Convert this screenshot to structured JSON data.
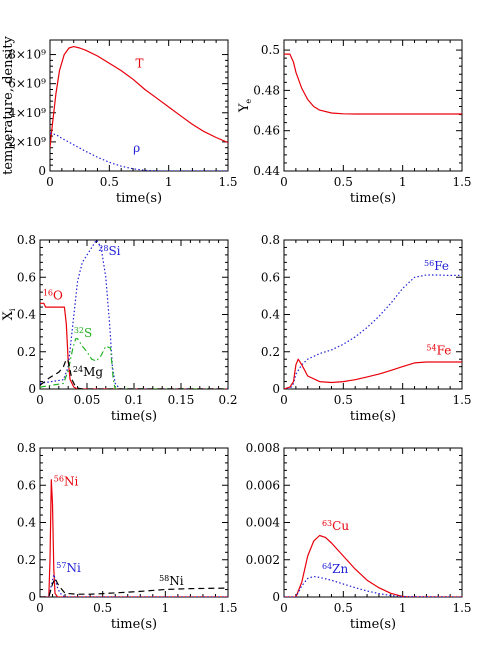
{
  "chart_data": [
    {
      "type": "line",
      "xlabel": "time(s)",
      "ylabel": "temperature, density",
      "xlim": [
        0,
        1.5
      ],
      "ylim": [
        0,
        9000000000.0
      ],
      "x_ticks": [
        0,
        0.5,
        1,
        1.5
      ],
      "x_tick_labels": [
        "0",
        "0.5",
        "1",
        "1.5"
      ],
      "y_ticks": [
        0,
        2000000000.0,
        4000000000.0,
        6000000000.0,
        8000000000.0
      ],
      "y_tick_labels": [
        "0",
        "2×10⁹",
        "4×10⁹",
        "6×10⁹",
        "8×10⁹"
      ],
      "series": [
        {
          "name": "T",
          "color": "#e8000b",
          "style": "solid",
          "x": [
            0,
            0.02,
            0.05,
            0.08,
            0.12,
            0.16,
            0.2,
            0.25,
            0.3,
            0.4,
            0.5,
            0.6,
            0.7,
            0.8,
            0.9,
            1.0,
            1.1,
            1.2,
            1.3,
            1.4,
            1.5
          ],
          "y": [
            1600000000.0,
            3200000000.0,
            5300000000.0,
            6900000000.0,
            8000000000.0,
            8450000000.0,
            8550000000.0,
            8450000000.0,
            8300000000.0,
            7900000000.0,
            7400000000.0,
            6900000000.0,
            6300000000.0,
            5600000000.0,
            5000000000.0,
            4400000000.0,
            3800000000.0,
            3200000000.0,
            2700000000.0,
            2300000000.0,
            1950000000.0
          ]
        },
        {
          "name": "ρ",
          "color": "#1f1fd6",
          "style": "dotted",
          "x": [
            0,
            0.05,
            0.1,
            0.2,
            0.3,
            0.4,
            0.5,
            0.6,
            0.7,
            0.8,
            0.9,
            1.0,
            1.2,
            1.5
          ],
          "y": [
            2600000000.0,
            2500000000.0,
            2250000000.0,
            1800000000.0,
            1350000000.0,
            950000000.0,
            600000000.0,
            330000000.0,
            150000000.0,
            50000000.0,
            10000000.0,
            0,
            0,
            0
          ]
        }
      ],
      "annotations": [
        {
          "text": "T",
          "x": 0.72,
          "y": 7100000000.0,
          "color": "#e8000b"
        },
        {
          "text": "ρ",
          "x": 0.7,
          "y": 1300000000.0,
          "color": "#1f1fd6"
        }
      ]
    },
    {
      "type": "line",
      "xlabel": "time(s)",
      "ylabel": "Y_e",
      "xlim": [
        0,
        1.5
      ],
      "ylim": [
        0.44,
        0.505
      ],
      "x_ticks": [
        0,
        0.5,
        1,
        1.5
      ],
      "x_tick_labels": [
        "0",
        "0.5",
        "1",
        "1.5"
      ],
      "y_ticks": [
        0.44,
        0.46,
        0.48,
        0.5
      ],
      "y_tick_labels": [
        "0.44",
        "0.46",
        "0.48",
        "0.5"
      ],
      "series": [
        {
          "name": "",
          "color": "#e8000b",
          "style": "solid",
          "x": [
            0,
            0.05,
            0.08,
            0.1,
            0.15,
            0.2,
            0.25,
            0.3,
            0.4,
            0.5,
            0.6,
            1.0,
            1.5
          ],
          "y": [
            0.498,
            0.498,
            0.494,
            0.489,
            0.481,
            0.4755,
            0.472,
            0.4702,
            0.4688,
            0.4684,
            0.4683,
            0.4683,
            0.4683
          ]
        }
      ]
    },
    {
      "type": "line",
      "xlabel": "time(s)",
      "ylabel": "Xi",
      "xlim": [
        0,
        0.2
      ],
      "ylim": [
        0,
        0.8
      ],
      "x_ticks": [
        0,
        0.05,
        0.1,
        0.15,
        0.2
      ],
      "x_tick_labels": [
        "0",
        "0.05",
        "0.1",
        "0.15",
        "0.2"
      ],
      "y_ticks": [
        0,
        0.2,
        0.4,
        0.6,
        0.8
      ],
      "y_tick_labels": [
        "0",
        "0.2",
        "0.4",
        "0.6",
        "0.8"
      ],
      "series": [
        {
          "name": "16O",
          "color": "#e8000b",
          "style": "solid",
          "x": [
            0,
            0.004,
            0.006,
            0.01,
            0.02,
            0.026,
            0.028,
            0.03,
            0.032,
            0.036,
            0.04,
            0.2
          ],
          "y": [
            0.46,
            0.46,
            0.44,
            0.44,
            0.44,
            0.44,
            0.35,
            0.15,
            0.05,
            0.01,
            0,
            0
          ]
        },
        {
          "name": "28Si",
          "color": "#1f1fd6",
          "style": "dotted",
          "x": [
            0,
            0.025,
            0.03,
            0.035,
            0.04,
            0.045,
            0.05,
            0.055,
            0.06,
            0.065,
            0.07,
            0.074,
            0.077,
            0.08,
            0.085,
            0.2
          ],
          "y": [
            0.03,
            0.05,
            0.12,
            0.35,
            0.58,
            0.68,
            0.72,
            0.76,
            0.8,
            0.76,
            0.6,
            0.35,
            0.12,
            0.03,
            0,
            0
          ]
        },
        {
          "name": "32S",
          "color": "#22b022",
          "style": "dashdot",
          "x": [
            0,
            0.025,
            0.03,
            0.035,
            0.038,
            0.04,
            0.045,
            0.05,
            0.055,
            0.06,
            0.065,
            0.07,
            0.075,
            0.078,
            0.08,
            0.2
          ],
          "y": [
            0.01,
            0.03,
            0.1,
            0.22,
            0.27,
            0.27,
            0.23,
            0.2,
            0.16,
            0.15,
            0.18,
            0.23,
            0.22,
            0.05,
            0,
            0
          ]
        },
        {
          "name": "24Mg",
          "color": "#000000",
          "style": "dashed",
          "x": [
            0,
            0.01,
            0.02,
            0.025,
            0.028,
            0.03,
            0.032,
            0.034,
            0.037,
            0.04,
            0.045,
            0.2
          ],
          "y": [
            0.02,
            0.06,
            0.09,
            0.12,
            0.16,
            0.15,
            0.1,
            0.05,
            0.02,
            0.005,
            0,
            0
          ]
        }
      ],
      "annotations": [
        {
          "text": "16O",
          "x": 0.003,
          "y": 0.48,
          "color": "#e8000b"
        },
        {
          "text": "28Si",
          "x": 0.062,
          "y": 0.72,
          "color": "#1f1fd6"
        },
        {
          "text": "32S",
          "x": 0.036,
          "y": 0.28,
          "color": "#22b022"
        },
        {
          "text": "24Mg",
          "x": 0.035,
          "y": 0.07,
          "color": "#000000"
        }
      ]
    },
    {
      "type": "line",
      "xlabel": "time(s)",
      "ylabel": "",
      "xlim": [
        0,
        1.5
      ],
      "ylim": [
        0,
        0.8
      ],
      "x_ticks": [
        0,
        0.5,
        1,
        1.5
      ],
      "x_tick_labels": [
        "0",
        "0.5",
        "1",
        "1.5"
      ],
      "y_ticks": [
        0,
        0.2,
        0.4,
        0.6,
        0.8
      ],
      "y_tick_labels": [
        "0",
        "0.2",
        "0.4",
        "0.6",
        "0.8"
      ],
      "series": [
        {
          "name": "56Fe",
          "color": "#1f1fd6",
          "style": "dotted",
          "x": [
            0,
            0.05,
            0.08,
            0.1,
            0.15,
            0.2,
            0.3,
            0.4,
            0.5,
            0.6,
            0.7,
            0.8,
            0.9,
            1.0,
            1.1,
            1.2,
            1.3,
            1.4,
            1.5
          ],
          "y": [
            0,
            0,
            0.03,
            0.08,
            0.13,
            0.16,
            0.19,
            0.21,
            0.24,
            0.28,
            0.33,
            0.39,
            0.46,
            0.54,
            0.6,
            0.612,
            0.612,
            0.61,
            0.61
          ]
        },
        {
          "name": "54Fe",
          "color": "#e8000b",
          "style": "solid",
          "x": [
            0,
            0.05,
            0.08,
            0.1,
            0.12,
            0.15,
            0.2,
            0.3,
            0.4,
            0.5,
            0.6,
            0.7,
            0.8,
            0.9,
            1.0,
            1.1,
            1.2,
            1.3,
            1.4,
            1.5
          ],
          "y": [
            0,
            0.01,
            0.04,
            0.13,
            0.16,
            0.13,
            0.07,
            0.04,
            0.035,
            0.04,
            0.05,
            0.065,
            0.08,
            0.1,
            0.12,
            0.14,
            0.145,
            0.145,
            0.145,
            0.145
          ]
        }
      ],
      "annotations": [
        {
          "text": "56Fe",
          "x": 1.18,
          "y": 0.64,
          "color": "#1f1fd6"
        },
        {
          "text": "54Fe",
          "x": 1.2,
          "y": 0.185,
          "color": "#e8000b"
        }
      ]
    },
    {
      "type": "line",
      "xlabel": "time(s)",
      "ylabel": "",
      "xlim": [
        0,
        1.5
      ],
      "ylim": [
        0,
        0.8
      ],
      "x_ticks": [
        0,
        0.5,
        1,
        1.5
      ],
      "x_tick_labels": [
        "0",
        "0.5",
        "1",
        "1.5"
      ],
      "y_ticks": [
        0,
        0.2,
        0.4,
        0.6,
        0.8
      ],
      "y_tick_labels": [
        "0",
        "0.2",
        "0.4",
        "0.6",
        "0.8"
      ],
      "series": [
        {
          "name": "56Ni",
          "color": "#e8000b",
          "style": "solid",
          "x": [
            0,
            0.07,
            0.08,
            0.09,
            0.1,
            0.11,
            0.12,
            0.14,
            0.2,
            1.5
          ],
          "y": [
            0,
            0,
            0.2,
            0.63,
            0.5,
            0.15,
            0.02,
            0,
            0,
            0
          ]
        },
        {
          "name": "57Ni",
          "color": "#1f1fd6",
          "style": "dotted",
          "x": [
            0,
            0.07,
            0.08,
            0.1,
            0.11,
            0.12,
            0.14,
            0.16,
            0.2,
            0.3,
            1.5
          ],
          "y": [
            0,
            0,
            0.03,
            0.09,
            0.12,
            0.1,
            0.05,
            0.02,
            0,
            0,
            0
          ]
        },
        {
          "name": "58Ni",
          "color": "#000000",
          "style": "dashed",
          "x": [
            0,
            0.07,
            0.1,
            0.12,
            0.15,
            0.2,
            0.3,
            0.4,
            0.5,
            0.6,
            0.8,
            1.0,
            1.2,
            1.5
          ],
          "y": [
            0,
            0,
            0.07,
            0.1,
            0.06,
            0.02,
            0.015,
            0.015,
            0.018,
            0.022,
            0.03,
            0.04,
            0.045,
            0.048
          ]
        }
      ],
      "annotations": [
        {
          "text": "56Ni",
          "x": 0.11,
          "y": 0.6,
          "color": "#e8000b"
        },
        {
          "text": "57Ni",
          "x": 0.13,
          "y": 0.135,
          "color": "#1f1fd6"
        },
        {
          "text": "58Ni",
          "x": 0.95,
          "y": 0.065,
          "color": "#000000"
        }
      ]
    },
    {
      "type": "line",
      "xlabel": "time(s)",
      "ylabel": "",
      "xlim": [
        0,
        1.5
      ],
      "ylim": [
        0,
        0.008
      ],
      "x_ticks": [
        0,
        0.5,
        1,
        1.5
      ],
      "x_tick_labels": [
        "0",
        "0.5",
        "1",
        "1.5"
      ],
      "y_ticks": [
        0,
        0.002,
        0.004,
        0.006,
        0.008
      ],
      "y_tick_labels": [
        "0",
        "0.002",
        "0.004",
        "0.006",
        "0.008"
      ],
      "series": [
        {
          "name": "63Cu",
          "color": "#e8000b",
          "style": "solid",
          "x": [
            0,
            0.1,
            0.15,
            0.2,
            0.25,
            0.3,
            0.35,
            0.4,
            0.5,
            0.6,
            0.7,
            0.8,
            0.9,
            1.0,
            1.05,
            1.5
          ],
          "y": [
            0,
            0,
            0.0008,
            0.0022,
            0.003,
            0.0033,
            0.0032,
            0.0029,
            0.0022,
            0.0015,
            0.0009,
            0.0005,
            0.0002,
            3e-05,
            0,
            0
          ]
        },
        {
          "name": "64Zn",
          "color": "#1f1fd6",
          "style": "dotted",
          "x": [
            0,
            0.1,
            0.15,
            0.2,
            0.25,
            0.3,
            0.4,
            0.5,
            0.6,
            0.7,
            0.8,
            0.9,
            1.0,
            1.5
          ],
          "y": [
            0,
            0,
            0.0006,
            0.001,
            0.0011,
            0.00105,
            0.0009,
            0.0007,
            0.0005,
            0.00032,
            0.00018,
            8e-05,
            2e-05,
            0
          ]
        }
      ],
      "annotations": [
        {
          "text": "63Cu",
          "x": 0.32,
          "y": 0.0036,
          "color": "#e8000b"
        },
        {
          "text": "64Zn",
          "x": 0.32,
          "y": 0.0013,
          "color": "#1f1fd6"
        }
      ]
    }
  ]
}
